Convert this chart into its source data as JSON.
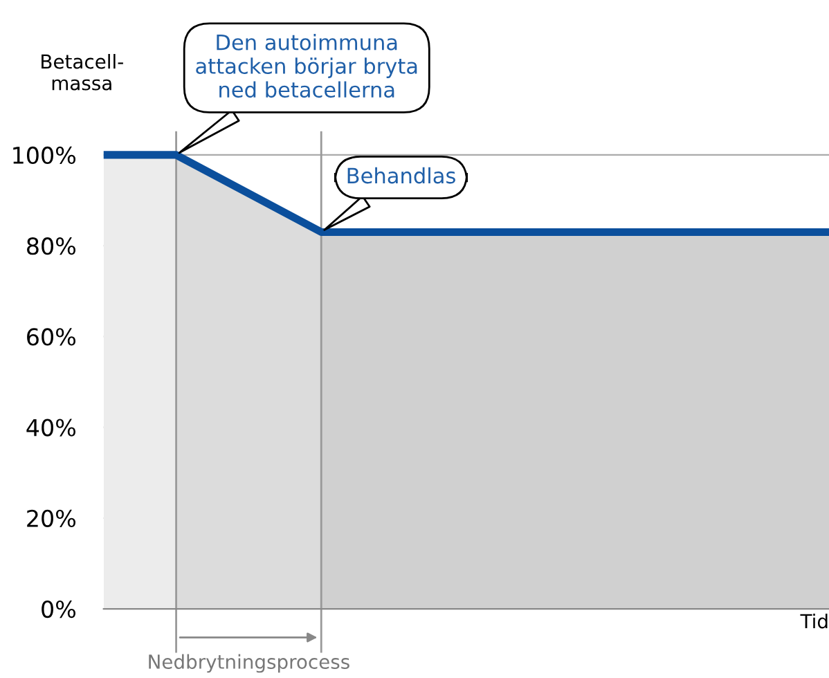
{
  "chart_data": {
    "type": "line",
    "ylabel": "Betacell-\nmassa",
    "xlabel": "Tid",
    "ylim": [
      0,
      105
    ],
    "categories": [
      null,
      null,
      null,
      null,
      null,
      null,
      null,
      null,
      null,
      null,
      null
    ],
    "yticks": [
      {
        "value": 0,
        "label": "0%"
      },
      {
        "value": 20,
        "label": "20%"
      },
      {
        "value": 40,
        "label": "40%"
      },
      {
        "value": 60,
        "label": "60%"
      },
      {
        "value": 80,
        "label": "80%"
      },
      {
        "value": 100,
        "label": "100%"
      }
    ],
    "tick_labels": "y",
    "grid": "y",
    "series": [
      {
        "type": "area",
        "color": "#ececec",
        "values": [
          100,
          100,
          null,
          null,
          null,
          null,
          null,
          null,
          null,
          null,
          null
        ]
      },
      {
        "type": "area",
        "color": "#dcdcdc",
        "values": [
          null,
          100,
          91.5,
          83,
          null,
          null,
          null,
          null,
          null,
          null,
          null
        ]
      },
      {
        "type": "area",
        "color": "#d0d0d0",
        "values": [
          null,
          null,
          null,
          83,
          83,
          83,
          83,
          83,
          83,
          83,
          83
        ]
      },
      {
        "color": "#0b4f9c",
        "values": [
          100,
          100,
          91.5,
          83,
          83,
          83,
          83,
          83,
          83,
          83,
          83
        ]
      }
    ],
    "annotations": [
      "Den autoimmuna\nattacken börjar bryta\nned betacellerna",
      "Behandlas",
      "Nedbrytningsprocess"
    ]
  }
}
